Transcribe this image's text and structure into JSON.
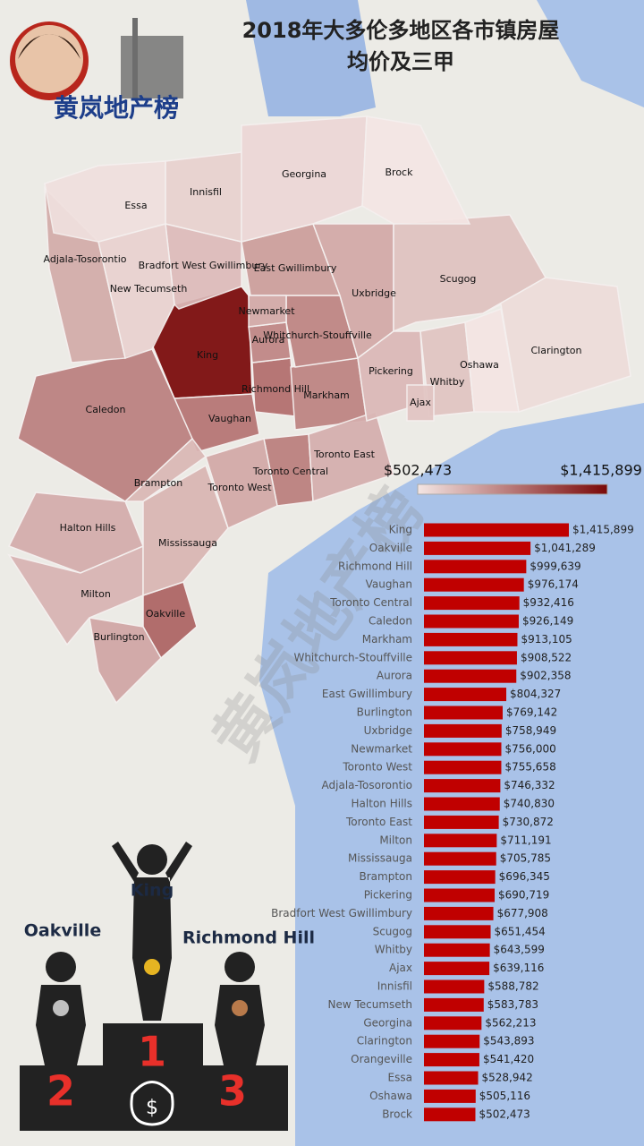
{
  "header": {
    "title_lines": [
      "2018年大多伦多地区各市镇房屋",
      "均价及三甲"
    ]
  },
  "logo": {
    "text": "黄岚地产榜"
  },
  "colorbar": {
    "min": {
      "value": 502473,
      "label": "$502,473"
    },
    "max": {
      "value": 1415899,
      "label": "$1,415,899"
    },
    "colors": [
      "#f4e6e4",
      "#7a0808"
    ]
  },
  "chart_data": {
    "type": "bar",
    "orientation": "horizontal",
    "color": "#c00000",
    "categories": [
      "King",
      "Oakville",
      "Richmond Hill",
      "Vaughan",
      "Toronto Central",
      "Caledon",
      "Markham",
      "Whitchurch-Stouffville",
      "Aurora",
      "East Gwillimbury",
      "Burlington",
      "Uxbridge",
      "Newmarket",
      "Toronto West",
      "Adjala-Tosorontio",
      "Halton Hills",
      "Toronto East",
      "Milton",
      "Mississauga",
      "Brampton",
      "Pickering",
      "Bradfort West Gwillimbury",
      "Scugog",
      "Whitby",
      "Ajax",
      "Innisfil",
      "New Tecumseth",
      "Georgina",
      "Clarington",
      "Orangeville",
      "Essa",
      "Oshawa",
      "Brock"
    ],
    "values": [
      1415899,
      1041289,
      999639,
      976174,
      932416,
      926149,
      913105,
      908522,
      902358,
      804327,
      769142,
      758949,
      756000,
      755658,
      746332,
      740830,
      730872,
      711191,
      705785,
      696345,
      690719,
      677908,
      651454,
      643599,
      639116,
      588782,
      583783,
      562213,
      543893,
      541420,
      528942,
      505116,
      502473
    ],
    "value_labels": [
      "$1,415,899",
      "$1,041,289",
      "$999,639",
      "$976,174",
      "$932,416",
      "$926,149",
      "$913,105",
      "$908,522",
      "$902,358",
      "$804,327",
      "$769,142",
      "$758,949",
      "$756,000",
      "$755,658",
      "$746,332",
      "$740,830",
      "$730,872",
      "$711,191",
      "$705,785",
      "$696,345",
      "$690,719",
      "$677,908",
      "$651,454",
      "$643,599",
      "$639,116",
      "$588,782",
      "$583,783",
      "$562,213",
      "$543,893",
      "$541,420",
      "$528,942",
      "$505,116",
      "$502,473"
    ]
  },
  "podium": {
    "places": [
      {
        "rank": "1",
        "name": "King"
      },
      {
        "rank": "2",
        "name": "Oakville"
      },
      {
        "rank": "3",
        "name": "Richmond Hill"
      }
    ],
    "bag_symbol": "$"
  }
}
